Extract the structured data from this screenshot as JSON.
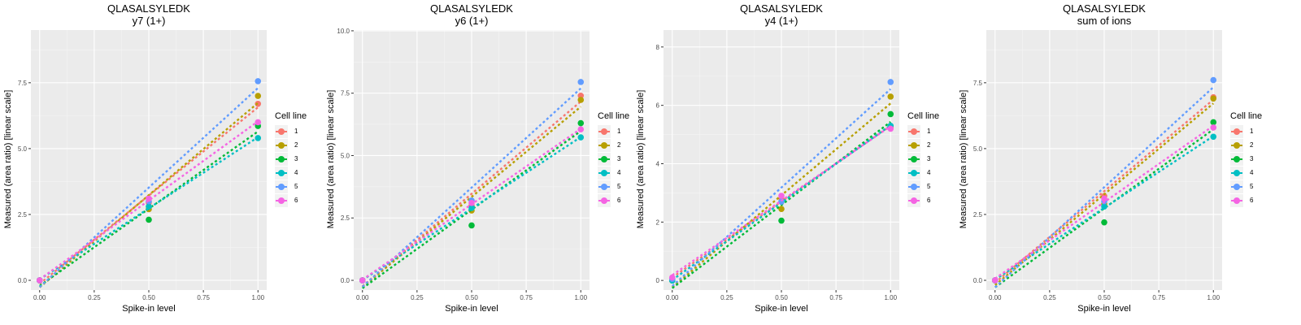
{
  "chart_data": [
    {
      "type": "scatter",
      "title": "QLASALSYLEDK",
      "subtitle": "y7 (1+)",
      "xlabel": "Spike-in level",
      "ylabel": "Measured (area ratio) [linear scale]",
      "x": [
        0,
        0.5,
        1
      ],
      "xticks": [
        "0.00",
        "0.25",
        "0.50",
        "0.75",
        "1.00"
      ],
      "yticks": [
        0,
        2.5,
        5,
        7.5
      ],
      "ytick_labels": [
        "0.0",
        "2.5",
        "5.0",
        "7.5"
      ],
      "ylim": [
        -0.37,
        9.5
      ],
      "series": [
        {
          "name": "1",
          "values": [
            0,
            2.95,
            6.7
          ]
        },
        {
          "name": "2",
          "values": [
            0,
            2.7,
            7.0
          ]
        },
        {
          "name": "3",
          "values": [
            0,
            2.3,
            5.86
          ]
        },
        {
          "name": "4",
          "values": [
            0,
            2.8,
            5.4
          ]
        },
        {
          "name": "5",
          "values": [
            0,
            3.0,
            7.56
          ]
        },
        {
          "name": "6",
          "values": [
            0,
            3.1,
            6.0
          ]
        }
      ]
    },
    {
      "type": "scatter",
      "title": "QLASALSYLEDK",
      "subtitle": "y6 (1+)",
      "xlabel": "Spike-in level",
      "ylabel": "Measured (area ratio) [linear scale]",
      "x": [
        0,
        0.5,
        1
      ],
      "xticks": [
        "0.00",
        "0.25",
        "0.50",
        "0.75",
        "1.00"
      ],
      "yticks": [
        0,
        2.5,
        5,
        7.5,
        10
      ],
      "ytick_labels": [
        "0.0",
        "2.5",
        "5.0",
        "7.5",
        "10.0"
      ],
      "ylim": [
        -0.39,
        10.03
      ],
      "series": [
        {
          "name": "1",
          "values": [
            0,
            3.0,
            7.4
          ]
        },
        {
          "name": "2",
          "values": [
            0,
            2.8,
            7.23
          ]
        },
        {
          "name": "3",
          "values": [
            0,
            2.2,
            6.3
          ]
        },
        {
          "name": "4",
          "values": [
            0,
            2.9,
            5.73
          ]
        },
        {
          "name": "5",
          "values": [
            0,
            3.2,
            7.95
          ]
        },
        {
          "name": "6",
          "values": [
            0,
            3.1,
            6.05
          ]
        }
      ]
    },
    {
      "type": "scatter",
      "title": "QLASALSYLEDK",
      "subtitle": "y4 (1+)",
      "xlabel": "Spike-in level",
      "ylabel": "Measured (area ratio) [linear scale]",
      "x": [
        0,
        0.5,
        1
      ],
      "xticks": [
        "0.00",
        "0.25",
        "0.50",
        "0.75",
        "1.00"
      ],
      "yticks": [
        0,
        2,
        4,
        6,
        8
      ],
      "ytick_labels": [
        "0",
        "2",
        "4",
        "6",
        "8"
      ],
      "ylim": [
        -0.33,
        8.58
      ],
      "series": [
        {
          "name": "1",
          "values": [
            0.05,
            2.8,
            5.25
          ]
        },
        {
          "name": "2",
          "values": [
            0,
            2.45,
            6.3
          ]
        },
        {
          "name": "3",
          "values": [
            0,
            2.05,
            5.7
          ]
        },
        {
          "name": "4",
          "values": [
            0,
            2.7,
            5.3
          ]
        },
        {
          "name": "5",
          "values": [
            0.05,
            2.7,
            6.8
          ]
        },
        {
          "name": "6",
          "values": [
            0.1,
            2.9,
            5.2
          ]
        }
      ]
    },
    {
      "type": "scatter",
      "title": "QLASALSYLEDK",
      "subtitle": "sum of ions",
      "xlabel": "Spike-in level",
      "ylabel": "Measured (area ratio) [linear scale]",
      "x": [
        0,
        0.5,
        1
      ],
      "xticks": [
        "0.00",
        "0.25",
        "0.50",
        "0.75",
        "1.00"
      ],
      "yticks": [
        0,
        2.5,
        5,
        7.5
      ],
      "ytick_labels": [
        "0.0",
        "2.5",
        "5.0",
        "7.5"
      ],
      "ylim": [
        -0.37,
        9.5
      ],
      "series": [
        {
          "name": "1",
          "values": [
            0,
            3.2,
            6.95
          ]
        },
        {
          "name": "2",
          "values": [
            0,
            2.9,
            6.9
          ]
        },
        {
          "name": "3",
          "values": [
            0,
            2.2,
            6.0
          ]
        },
        {
          "name": "4",
          "values": [
            0,
            2.8,
            5.45
          ]
        },
        {
          "name": "5",
          "values": [
            0,
            3.0,
            7.6
          ]
        },
        {
          "name": "6",
          "values": [
            0,
            3.1,
            5.8
          ]
        }
      ]
    }
  ],
  "legend": {
    "title": "Cell line",
    "position": "right",
    "items": [
      "1",
      "2",
      "3",
      "4",
      "5",
      "6"
    ]
  },
  "colors": [
    "#F8766D",
    "#B79F00",
    "#00BA38",
    "#00BFC4",
    "#619CFF",
    "#F564E3"
  ]
}
